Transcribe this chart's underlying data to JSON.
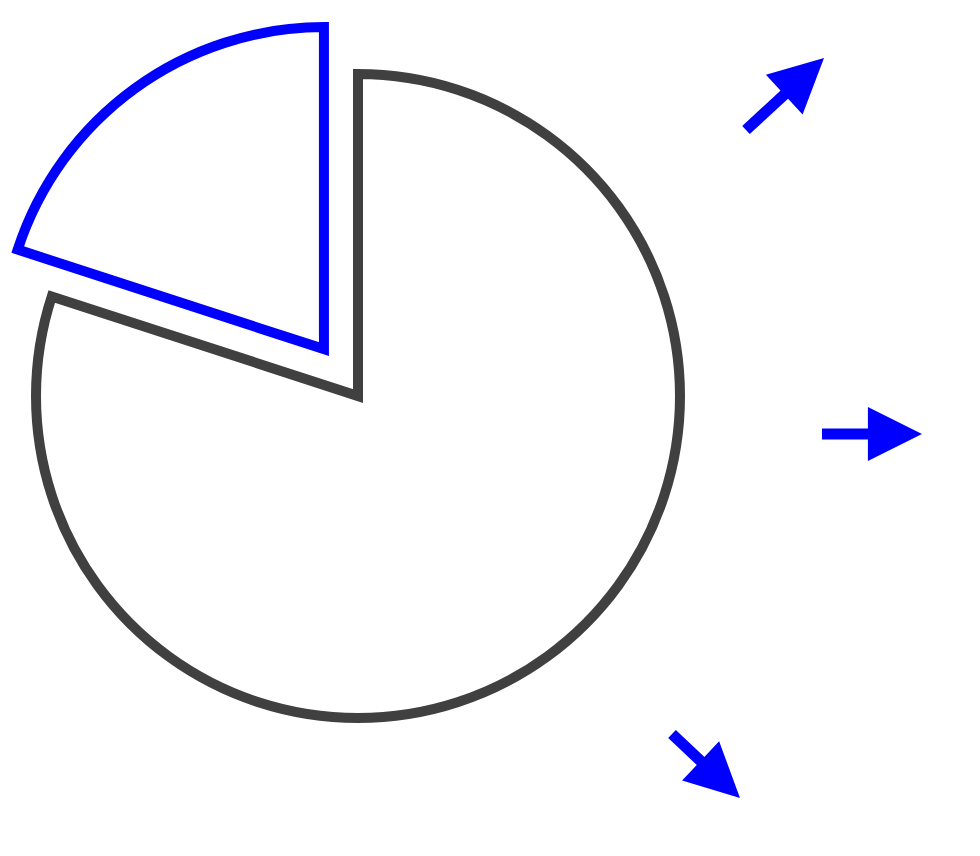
{
  "chart_data": {
    "type": "pie",
    "categories": [
      null,
      null
    ],
    "values": [
      20,
      80
    ],
    "colors": [
      "#0000ff",
      "#404040"
    ]
  }
}
